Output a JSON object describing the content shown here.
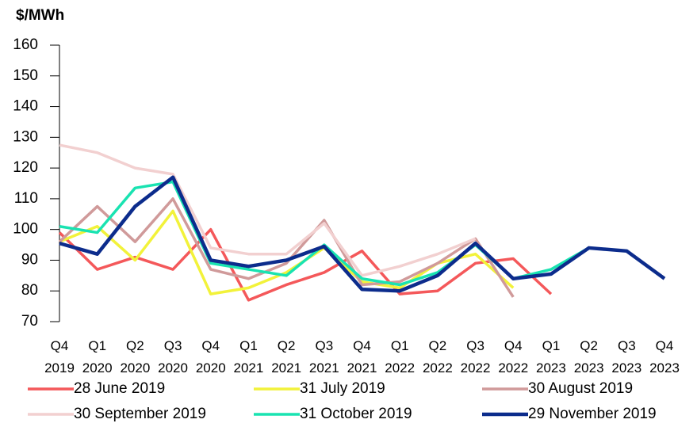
{
  "chart_data": {
    "type": "line",
    "y_label": "$/MWh",
    "categories": [
      "Q4 2019",
      "Q1 2020",
      "Q2 2020",
      "Q3 2020",
      "Q4 2020",
      "Q1 2021",
      "Q2 2021",
      "Q3 2021",
      "Q4 2021",
      "Q1 2022",
      "Q2 2022",
      "Q3 2022",
      "Q4 2022",
      "Q1 2023",
      "Q2 2023",
      "Q3 2023",
      "Q4 2023"
    ],
    "ylim": [
      70,
      160
    ],
    "yticks": [
      70,
      80,
      90,
      100,
      110,
      120,
      130,
      140,
      150,
      160
    ],
    "legend": "bottom",
    "series": [
      {
        "name": "28 June 2019",
        "color": "#f4585a",
        "values": [
          99,
          87,
          91,
          87,
          100,
          77,
          82,
          86,
          93,
          79,
          80,
          89,
          90.5,
          79,
          null,
          null,
          null
        ]
      },
      {
        "name": "31 July 2019",
        "color": "#f2f23a",
        "values": [
          96,
          101,
          90,
          106,
          79,
          81,
          86,
          94,
          83,
          81,
          89,
          92,
          81,
          null,
          null,
          null,
          null
        ]
      },
      {
        "name": "30 August 2019",
        "color": "#d09a9a",
        "values": [
          96,
          107.5,
          96,
          110,
          87,
          84,
          89,
          103,
          82,
          83,
          89,
          97,
          78,
          null,
          null,
          null,
          null
        ]
      },
      {
        "name": "30 September 2019",
        "color": "#f2d0d0",
        "values": [
          127.5,
          125,
          120,
          118,
          94,
          92,
          92,
          102,
          85,
          88,
          92,
          97,
          null,
          null,
          null,
          null,
          null
        ]
      },
      {
        "name": "31 October 2019",
        "color": "#19e3b1",
        "values": [
          101,
          99,
          113.5,
          115.5,
          89,
          87,
          85,
          95,
          84,
          82,
          86,
          95,
          84,
          87,
          94,
          null,
          null
        ]
      },
      {
        "name": "29 November 2019",
        "color": "#0c2c8c",
        "values": [
          95.5,
          92,
          107.5,
          117,
          90,
          88,
          90,
          94.5,
          80.5,
          80,
          85,
          95.5,
          84,
          85.5,
          94,
          93,
          84
        ]
      }
    ]
  }
}
